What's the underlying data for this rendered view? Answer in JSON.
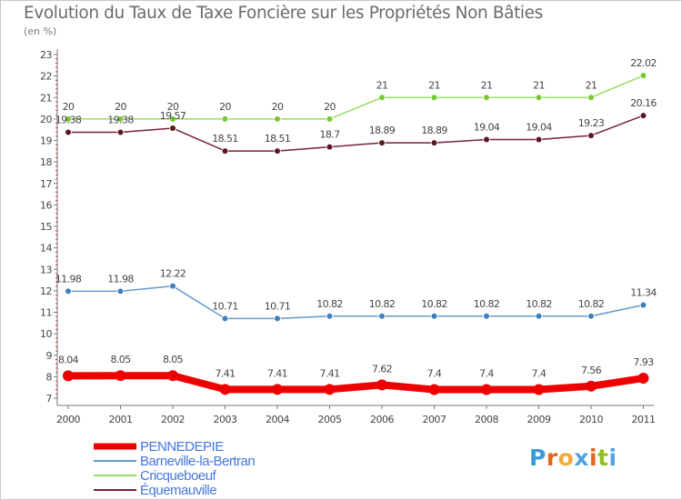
{
  "title": "Evolution du Taux de Taxe Foncière sur les Propriétés Non Bâties",
  "subtitle": "(en %)",
  "logo": {
    "letters": [
      "P",
      "r",
      "o",
      "x",
      "i",
      "t",
      "i"
    ],
    "colors": [
      "#3a9ad9",
      "#e8641e",
      "#f2a93b",
      "#4fa3e0",
      "#e8641e",
      "#93c01f",
      "#4fa3e0"
    ]
  },
  "chart_data": {
    "type": "line",
    "title": "Evolution du Taux de Taxe Foncière sur les Propriétés Non Bâties",
    "ylabel": "(en %)",
    "xlabel": "",
    "x": [
      "2000",
      "2001",
      "2002",
      "2003",
      "2004",
      "2005",
      "2006",
      "2007",
      "2008",
      "2009",
      "2010",
      "2011"
    ],
    "ylim": [
      7,
      23
    ],
    "yticks": [
      "7",
      "8",
      "9",
      "10",
      "11",
      "12",
      "13",
      "14",
      "15",
      "16",
      "17",
      "18",
      "19",
      "20",
      "21",
      "22",
      "23"
    ],
    "grid": false,
    "legend_position": "bottom-left",
    "series": [
      {
        "name": "Cricqueboeuf",
        "color": "#99dd66",
        "dot": "#77c833",
        "width": 1.5,
        "values": [
          20,
          20,
          20,
          20,
          20,
          20,
          21,
          21,
          21,
          21,
          21,
          22.02
        ],
        "labels": [
          "20",
          "20",
          "20",
          "20",
          "20",
          "20",
          "21",
          "21",
          "21",
          "21",
          "21",
          "22.02"
        ]
      },
      {
        "name": "Équemauville",
        "color": "#772233",
        "dot": "#5a1822",
        "width": 1.5,
        "values": [
          19.38,
          19.38,
          19.57,
          18.51,
          18.51,
          18.7,
          18.89,
          18.89,
          19.04,
          19.04,
          19.23,
          20.16
        ],
        "labels": [
          "19.38",
          "19.38",
          "19.57",
          "18.51",
          "18.51",
          "18.7",
          "18.89",
          "18.89",
          "19.04",
          "19.04",
          "19.23",
          "20.16"
        ]
      },
      {
        "name": "Barneville-la-Bertran",
        "color": "#6699cc",
        "dot": "#3f7fbf",
        "width": 1.5,
        "values": [
          11.98,
          11.98,
          12.22,
          10.71,
          10.71,
          10.82,
          10.82,
          10.82,
          10.82,
          10.82,
          10.82,
          11.34
        ],
        "labels": [
          "11.98",
          "11.98",
          "12.22",
          "10.71",
          "10.71",
          "10.82",
          "10.82",
          "10.82",
          "10.82",
          "10.82",
          "10.82",
          "11.34"
        ]
      },
      {
        "name": "PENNEDEPIE",
        "color": "#ee0000",
        "dot": "#ee0000",
        "width": 8,
        "values": [
          8.04,
          8.05,
          8.05,
          7.41,
          7.41,
          7.41,
          7.62,
          7.4,
          7.4,
          7.4,
          7.56,
          7.93
        ],
        "labels": [
          "8.04",
          "8.05",
          "8.05",
          "7.41",
          "7.41",
          "7.41",
          "7.62",
          "7.4",
          "7.4",
          "7.4",
          "7.56",
          "7.93"
        ]
      }
    ],
    "legend": [
      {
        "name": "PENNEDEPIE",
        "color": "#ee0000",
        "text_color": "#4477dd",
        "width": 7
      },
      {
        "name": "Barneville-la-Bertran",
        "color": "#6699cc",
        "text_color": "#4477dd",
        "width": 2
      },
      {
        "name": "Cricqueboeuf",
        "color": "#99dd66",
        "text_color": "#4477dd",
        "width": 2
      },
      {
        "name": "Équemauville",
        "color": "#772233",
        "text_color": "#4477dd",
        "width": 2
      }
    ]
  }
}
